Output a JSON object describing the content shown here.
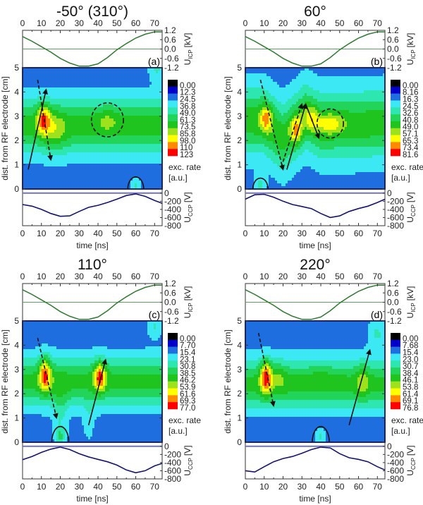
{
  "colormap": [
    "#000000",
    "#0000c8",
    "#1e6ee0",
    "#3ce8f4",
    "#2ee6b0",
    "#22d45a",
    "#1fc41f",
    "#9ee21e",
    "#ffff00",
    "#ff8a00",
    "#ff0000"
  ],
  "chart_data": [
    {
      "type": "heatmap",
      "panel_label": "(a)",
      "title": "-50° (310°)",
      "xlabel": "time [ns]",
      "ylabel": "dist. from RF electrode [cm]",
      "xlim": [
        0,
        74
      ],
      "xticks": [
        "0",
        "10",
        "20",
        "30",
        "40",
        "50",
        "60",
        "70"
      ],
      "ylim": [
        0,
        5
      ],
      "yticks": [
        "0",
        "1",
        "2",
        "3",
        "4",
        "5"
      ],
      "colorbar": {
        "label": "exc. rate",
        "unit": "[a.u.]",
        "levels": [
          "0.00",
          "12.3",
          "24.5",
          "36.8",
          "49.0",
          "61.3",
          "73.5",
          "85.8",
          "98.0",
          "110",
          "123"
        ]
      },
      "icp": {
        "symbol": "U",
        "sub": "ICP",
        "unit": "[kV]",
        "ylim": [
          -1.2,
          1.2
        ],
        "yticks": [
          "1.2",
          "0.6",
          "0.0",
          "-0.6",
          "-1.2"
        ],
        "t": [
          0,
          5,
          10,
          15,
          20,
          25,
          30,
          35,
          40,
          45,
          50,
          55,
          60,
          65,
          70,
          74
        ],
        "values": [
          0.8,
          0.5,
          0.15,
          -0.2,
          -0.6,
          -0.9,
          -1.1,
          -1.1,
          -0.95,
          -0.55,
          -0.05,
          0.35,
          0.7,
          0.95,
          1.1,
          1.1
        ]
      },
      "ccp": {
        "symbol": "U",
        "sub": "CCP",
        "unit": "[V]",
        "ylim": [
          -800,
          100
        ],
        "yticks": [
          "0",
          "-200",
          "-400",
          "-600",
          "-800"
        ],
        "t": [
          0,
          5,
          10,
          15,
          20,
          25,
          30,
          35,
          40,
          45,
          50,
          55,
          60,
          65,
          70,
          74
        ],
        "values": [
          -280,
          -320,
          -400,
          -500,
          -570,
          -560,
          -450,
          -350,
          -300,
          -230,
          -150,
          -60,
          -20,
          -80,
          -180,
          -250
        ]
      },
      "excitation_features": {
        "base": 0.22,
        "band_amp": 0.36,
        "band_width_cm": 1.15,
        "band_center": [
          [
            0,
            2.6
          ],
          [
            74,
            2.6
          ]
        ],
        "peaks": [
          {
            "t": 11,
            "z": 2.9,
            "amp": 0.36,
            "st": 3.5,
            "sz": 0.6
          },
          {
            "t": 17,
            "z": 2.4,
            "amp": 0.15,
            "st": 6,
            "sz": 0.8
          },
          {
            "t": 45,
            "z": 2.85,
            "amp": 0.1,
            "st": 6,
            "sz": 0.5
          },
          {
            "t": 60,
            "z": 0.1,
            "amp": 0.16,
            "st": 3,
            "sz": 0.35
          },
          {
            "t": 71,
            "z": 5,
            "amp": 0.16,
            "st": 4,
            "sz": 0.5
          }
        ]
      },
      "annotations": {
        "arrows": [
          {
            "from": [
              3,
              0.8
            ],
            "to": [
              12.5,
              4.1
            ],
            "style": "solid"
          },
          {
            "from": [
              8,
              4.5
            ],
            "to": [
              15,
              1.2
            ],
            "style": "dashed"
          }
        ],
        "ellipses": [
          {
            "t": 45,
            "z": 2.85,
            "rt": 8.5,
            "rz": 0.7,
            "style": "dashed"
          }
        ],
        "arches": [
          {
            "t": 60,
            "rt": 4.2,
            "rz": 0.5
          }
        ]
      }
    },
    {
      "type": "heatmap",
      "panel_label": "(b)",
      "title": "60°",
      "xlabel": "time [ns]",
      "ylabel": "dist. from RF electrode [cm]",
      "xlim": [
        0,
        74
      ],
      "xticks": [
        "0",
        "10",
        "20",
        "30",
        "40",
        "50",
        "60",
        "70"
      ],
      "ylim": [
        0,
        5
      ],
      "yticks": [
        "0",
        "1",
        "2",
        "3",
        "4",
        "5"
      ],
      "colorbar": {
        "label": "exc. rate",
        "unit": "[a.u.]",
        "levels": [
          "0.00",
          "8.16",
          "16.3",
          "24.5",
          "32.6",
          "40.8",
          "49.0",
          "57.1",
          "65.3",
          "73.4",
          "81.6"
        ]
      },
      "icp": {
        "symbol": "U",
        "sub": "ICP",
        "unit": "[kV]",
        "ylim": [
          -1.2,
          1.2
        ],
        "yticks": [
          "1.2",
          "0.6",
          "0.0",
          "-0.6",
          "-1.2"
        ],
        "t": [
          0,
          5,
          10,
          15,
          20,
          25,
          30,
          35,
          40,
          45,
          50,
          55,
          60,
          65,
          70,
          74
        ],
        "values": [
          0.8,
          0.5,
          0.15,
          -0.2,
          -0.6,
          -0.9,
          -1.1,
          -1.1,
          -0.95,
          -0.55,
          -0.05,
          0.35,
          0.7,
          0.95,
          1.1,
          1.1
        ]
      },
      "ccp": {
        "symbol": "U",
        "sub": "CCP",
        "unit": "[V]",
        "ylim": [
          -800,
          100
        ],
        "yticks": [
          "0",
          "-200",
          "-400",
          "-600",
          "-800"
        ],
        "t": [
          0,
          5,
          10,
          15,
          20,
          25,
          30,
          35,
          40,
          45,
          50,
          55,
          60,
          65,
          70,
          74
        ],
        "values": [
          -150,
          -40,
          -30,
          -100,
          -200,
          -280,
          -330,
          -380,
          -500,
          -600,
          -560,
          -450,
          -380,
          -320,
          -230,
          -150
        ]
      },
      "excitation_features": {
        "base": 0.24,
        "band_amp": 0.36,
        "band_width_cm": 1.3,
        "band_center": [
          [
            0,
            2.8
          ],
          [
            10,
            2.8
          ],
          [
            20,
            2.1
          ],
          [
            32,
            3.0
          ],
          [
            40,
            2.6
          ],
          [
            74,
            2.7
          ]
        ],
        "peaks": [
          {
            "t": 11,
            "z": 2.9,
            "amp": 0.3,
            "st": 3,
            "sz": 0.55
          },
          {
            "t": 27,
            "z": 2.4,
            "amp": 0.3,
            "st": 3,
            "sz": 0.55
          },
          {
            "t": 45,
            "z": 2.7,
            "amp": 0.2,
            "st": 7,
            "sz": 0.4
          },
          {
            "t": 35,
            "z": 2.9,
            "amp": 0.2,
            "st": 4,
            "sz": 0.5
          },
          {
            "t": 8,
            "z": 0.2,
            "amp": 0.15,
            "st": 3,
            "sz": 0.35
          }
        ]
      },
      "annotations": {
        "arrows": [
          {
            "from": [
              8,
              4.5
            ],
            "to": [
              20,
              0.8
            ],
            "style": "dashed"
          },
          {
            "from": [
              22,
              0.8
            ],
            "to": [
              32,
              3.5
            ],
            "style": "solid"
          },
          {
            "from": [
              32,
              3.5
            ],
            "to": [
              39,
              2.1
            ],
            "style": "solid"
          },
          {
            "from": [
              19,
              0.9
            ],
            "to": [
              30,
              3.5
            ],
            "style": "dashed"
          }
        ],
        "ellipses": [
          {
            "t": 45,
            "z": 2.7,
            "rt": 7,
            "rz": 0.6,
            "style": "dashed"
          }
        ],
        "arches": [
          {
            "t": 8,
            "rt": 4,
            "rz": 0.45
          }
        ]
      }
    },
    {
      "type": "heatmap",
      "panel_label": "(c)",
      "title": "110°",
      "xlabel": "time [ns]",
      "ylabel": "dist. from RF electrode [cm]",
      "xlim": [
        0,
        74
      ],
      "xticks": [
        "0",
        "10",
        "20",
        "30",
        "40",
        "50",
        "60",
        "70"
      ],
      "ylim": [
        0,
        5
      ],
      "yticks": [
        "0",
        "1",
        "2",
        "3",
        "4",
        "5"
      ],
      "colorbar": {
        "label": "exc. rate",
        "unit": "[a.u.]",
        "levels": [
          "0.00",
          "7.70",
          "15.4",
          "23.1",
          "30.8",
          "38.5",
          "46.2",
          "53.9",
          "61.6",
          "69.3",
          "77.0"
        ]
      },
      "icp": {
        "symbol": "U",
        "sub": "ICP",
        "unit": "[kV]",
        "ylim": [
          -1.2,
          1.2
        ],
        "yticks": [
          "1.2",
          "0.6",
          "0.0",
          "-0.6",
          "-1.2"
        ],
        "t": [
          0,
          5,
          10,
          15,
          20,
          25,
          30,
          35,
          40,
          45,
          50,
          55,
          60,
          65,
          70,
          74
        ],
        "values": [
          0.8,
          0.5,
          0.15,
          -0.2,
          -0.6,
          -0.9,
          -1.1,
          -1.1,
          -0.95,
          -0.55,
          -0.05,
          0.35,
          0.7,
          0.95,
          1.1,
          1.1
        ]
      },
      "ccp": {
        "symbol": "U",
        "sub": "CCP",
        "unit": "[V]",
        "ylim": [
          -800,
          100
        ],
        "yticks": [
          "0",
          "-200",
          "-400",
          "-600",
          "-800"
        ],
        "t": [
          0,
          5,
          10,
          15,
          20,
          25,
          30,
          35,
          40,
          45,
          50,
          55,
          60,
          65,
          70,
          74
        ],
        "values": [
          -330,
          -250,
          -150,
          -70,
          -20,
          -80,
          -180,
          -260,
          -320,
          -380,
          -460,
          -580,
          -650,
          -600,
          -480,
          -420
        ]
      },
      "excitation_features": {
        "base": 0.22,
        "band_amp": 0.36,
        "band_width_cm": 1.0,
        "band_center": [
          [
            0,
            2.5
          ],
          [
            74,
            2.5
          ]
        ],
        "peaks": [
          {
            "t": 12,
            "z": 2.8,
            "amp": 0.4,
            "st": 3,
            "sz": 0.7
          },
          {
            "t": 41,
            "z": 2.7,
            "amp": 0.4,
            "st": 3,
            "sz": 0.6
          },
          {
            "t": 20,
            "z": 0.25,
            "amp": 0.2,
            "st": 3,
            "sz": 0.35
          },
          {
            "t": 70,
            "z": 4.8,
            "amp": 0.15,
            "st": 4,
            "sz": 0.5
          },
          {
            "t": 20,
            "z": 1.2,
            "amp": 0.12,
            "st": 4,
            "sz": 1.2
          },
          {
            "t": 35,
            "z": 0.8,
            "amp": 0.1,
            "st": 3,
            "sz": 0.8
          }
        ]
      },
      "annotations": {
        "arrows": [
          {
            "from": [
              8,
              4.3
            ],
            "to": [
              18,
              1.0
            ],
            "style": "dashed"
          },
          {
            "from": [
              35,
              0.7
            ],
            "to": [
              44,
              3.4
            ],
            "style": "solid"
          }
        ],
        "ellipses": [],
        "arches": [
          {
            "t": 20,
            "rt": 4.5,
            "rz": 0.65
          }
        ]
      }
    },
    {
      "type": "heatmap",
      "panel_label": "(d)",
      "title": "220°",
      "xlabel": "time [ns]",
      "ylabel": "dist. from RF electrode [cm]",
      "xlim": [
        0,
        74
      ],
      "xticks": [
        "0",
        "10",
        "20",
        "30",
        "40",
        "50",
        "60",
        "70"
      ],
      "ylim": [
        0,
        5
      ],
      "yticks": [
        "0",
        "1",
        "2",
        "3",
        "4",
        "5"
      ],
      "colorbar": {
        "label": "exc. rate",
        "unit": "[a.u.]",
        "levels": [
          "0.00",
          "7.68",
          "15.4",
          "23.0",
          "30.7",
          "38.4",
          "46.1",
          "53.8",
          "61.4",
          "69.1",
          "76.8"
        ]
      },
      "icp": {
        "symbol": "U",
        "sub": "ICP",
        "unit": "[kV]",
        "ylim": [
          -1.2,
          1.2
        ],
        "yticks": [
          "1.2",
          "0.6",
          "0.0",
          "-0.6",
          "-1.2"
        ],
        "t": [
          0,
          5,
          10,
          15,
          20,
          25,
          30,
          35,
          40,
          45,
          50,
          55,
          60,
          65,
          70,
          74
        ],
        "values": [
          0.8,
          0.5,
          0.15,
          -0.2,
          -0.6,
          -0.9,
          -1.1,
          -1.1,
          -0.95,
          -0.55,
          -0.05,
          0.35,
          0.7,
          0.95,
          1.1,
          1.1
        ]
      },
      "ccp": {
        "symbol": "U",
        "sub": "CCP",
        "unit": "[V]",
        "ylim": [
          -800,
          100
        ],
        "yticks": [
          "0",
          "-200",
          "-400",
          "-600",
          "-800"
        ],
        "t": [
          0,
          5,
          10,
          15,
          20,
          25,
          30,
          35,
          40,
          45,
          50,
          55,
          60,
          65,
          70,
          74
        ],
        "values": [
          -600,
          -630,
          -500,
          -380,
          -300,
          -250,
          -170,
          -80,
          -20,
          -40,
          -180,
          -280,
          -320,
          -380,
          -500,
          -580
        ]
      },
      "excitation_features": {
        "base": 0.22,
        "band_amp": 0.36,
        "band_width_cm": 1.0,
        "band_center": [
          [
            0,
            2.4
          ],
          [
            74,
            2.4
          ]
        ],
        "peaks": [
          {
            "t": 11,
            "z": 2.7,
            "amp": 0.42,
            "st": 3,
            "sz": 0.7
          },
          {
            "t": 18,
            "z": 2.7,
            "amp": 0.1,
            "st": 4,
            "sz": 0.6
          },
          {
            "t": 62,
            "z": 2.5,
            "amp": 0.15,
            "st": 3,
            "sz": 0.7
          },
          {
            "t": 70,
            "z": 4.5,
            "amp": 0.15,
            "st": 5,
            "sz": 0.7
          },
          {
            "t": 40,
            "z": 0.2,
            "amp": 0.15,
            "st": 3,
            "sz": 0.35
          },
          {
            "t": 40,
            "z": 2.6,
            "amp": 0.06,
            "st": 8,
            "sz": 0.4
          }
        ]
      },
      "annotations": {
        "arrows": [
          {
            "from": [
              7,
              4.5
            ],
            "to": [
              15,
              1.5
            ],
            "style": "dashed"
          },
          {
            "from": [
              55,
              0.7
            ],
            "to": [
              66,
              3.8
            ],
            "style": "solid"
          }
        ],
        "ellipses": [],
        "arches": [
          {
            "t": 40,
            "rt": 4.5,
            "rz": 0.65
          }
        ]
      }
    }
  ]
}
